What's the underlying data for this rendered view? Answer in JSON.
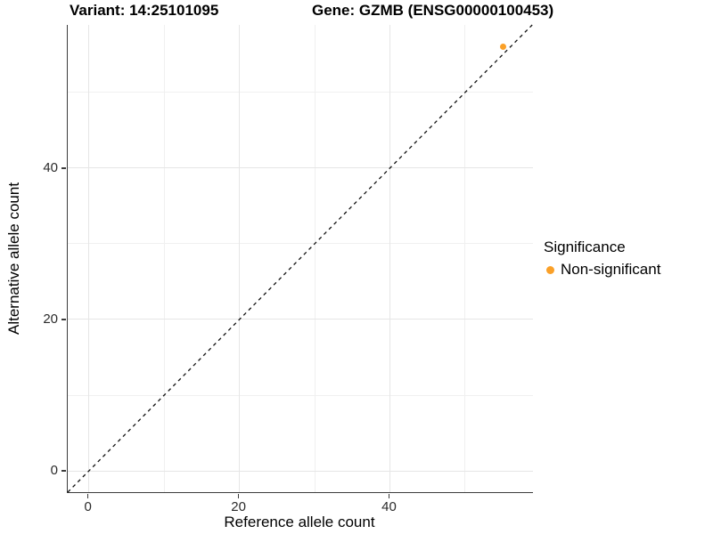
{
  "colors": {
    "non_significant": "#FAA028",
    "axis_line": "#3c3c3c",
    "grid_major": "#e6e6e6",
    "grid_minor": "#f0f0f0",
    "dashed_line": "#111111",
    "text": "#000000"
  },
  "chart_data": {
    "type": "scatter",
    "title_left": "Variant: 14:25101095",
    "title_right": "Gene: GZMB (ENSG00000100453)",
    "xlabel": "Reference allele count",
    "ylabel": "Alternative allele count",
    "xlim": [
      -2.8,
      59.0
    ],
    "ylim": [
      -2.8,
      58.9
    ],
    "x_breaks": [
      0,
      20,
      40
    ],
    "y_breaks": [
      0,
      20,
      40
    ],
    "x_minor_breaks": [
      10,
      30,
      50
    ],
    "y_minor_breaks": [
      10,
      30,
      50
    ],
    "grid": true,
    "reference_line": {
      "kind": "identity",
      "style": "dashed"
    },
    "legend": {
      "title": "Significance",
      "position": "right",
      "items": [
        {
          "label": "Non-significant",
          "color": "#FAA028"
        }
      ]
    },
    "series": [
      {
        "name": "Non-significant",
        "color": "#FAA028",
        "points": [
          {
            "x": 55,
            "y": 56
          }
        ]
      }
    ]
  }
}
